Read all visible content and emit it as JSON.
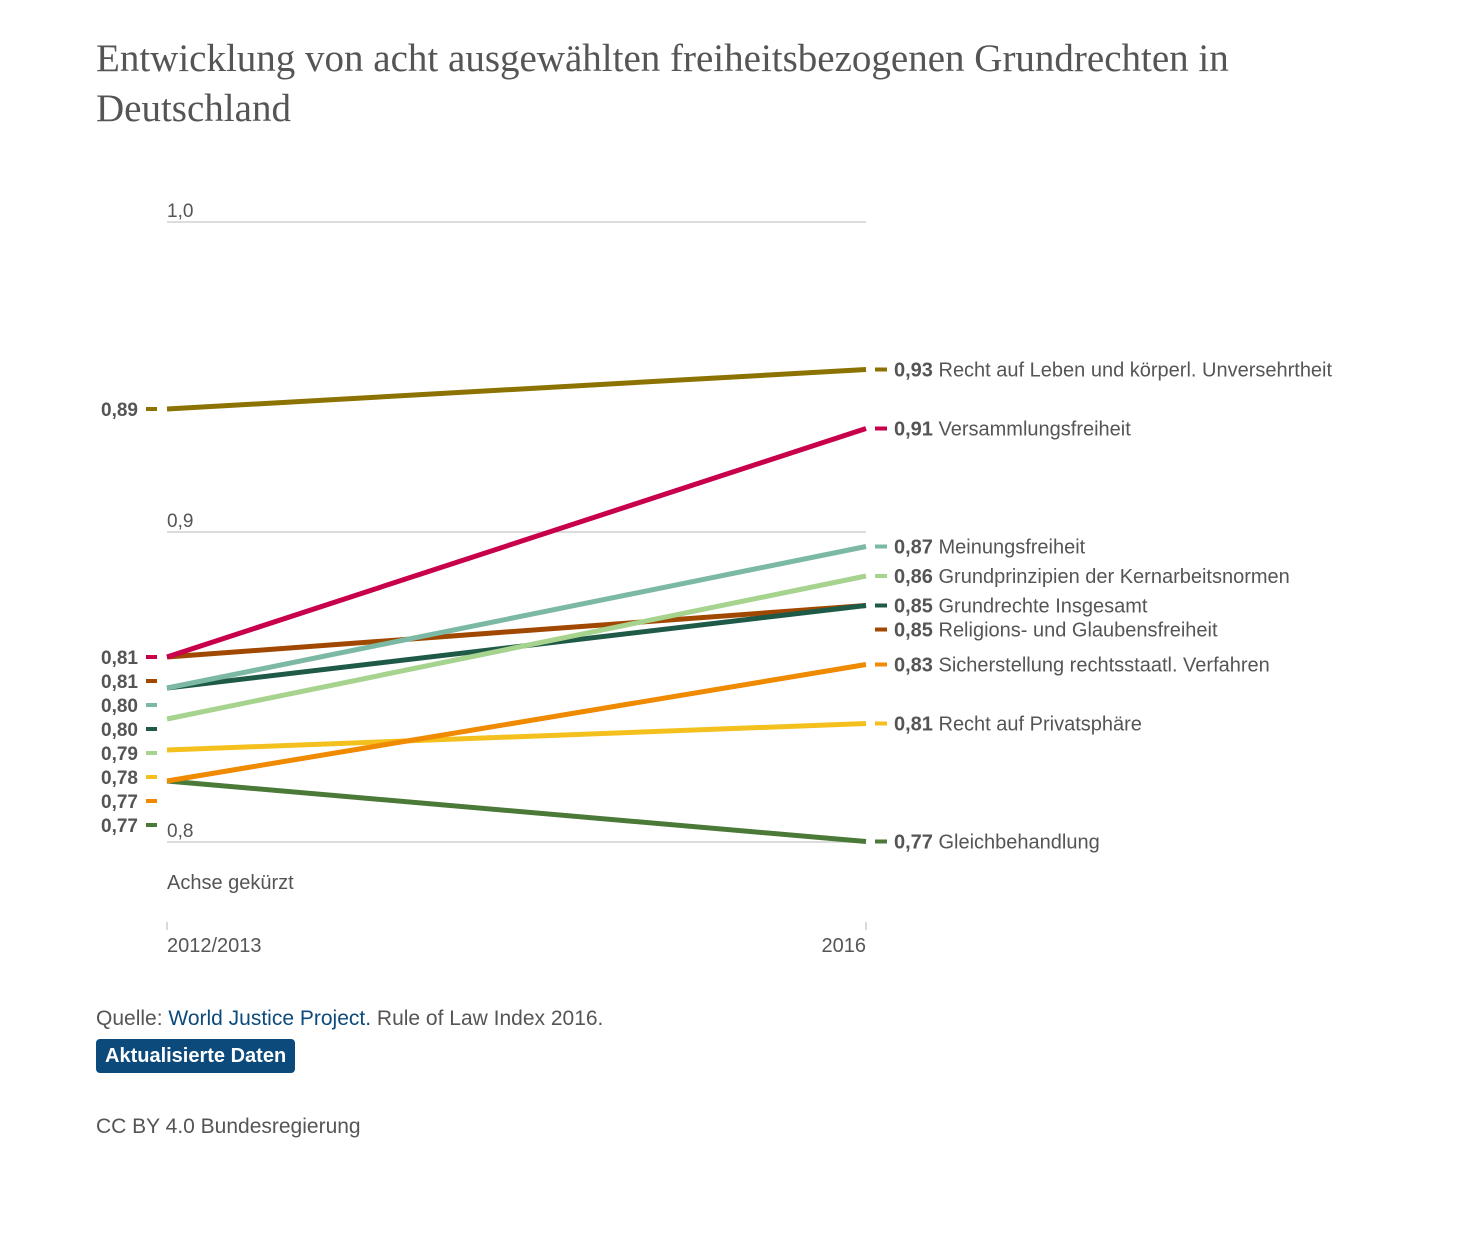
{
  "title": "Entwicklung von acht ausgewählten freiheitsbezogenen Grundrechten in Deutschland",
  "source": {
    "prefix": "Quelle: ",
    "link_text": "World Justice Project.",
    "suffix": " Rule of Law Index 2016."
  },
  "update_button": "Aktualisierte Daten",
  "license": "CC BY 4.0 Bundesregierung",
  "chart_data": {
    "type": "line",
    "title": "Entwicklung von acht ausgewählten freiheitsbezogenen Grundrechten in Deutschland",
    "x": [
      "2012/2013",
      "2016"
    ],
    "ylim": [
      0.76,
      0.98
    ],
    "y_ticks": [
      "1,0",
      "0,9",
      "0,8"
    ],
    "axis_note": "Achse gekürzt",
    "grid": true,
    "legend": "right",
    "series": [
      {
        "name": "Recht auf Leben und körperl. Unversehrtheit",
        "values": [
          0.89,
          0.93
        ],
        "labels": [
          "0,89",
          "0,93"
        ],
        "color": "#8c7200"
      },
      {
        "name": "Versammlungsfreiheit",
        "values": [
          0.81,
          0.91
        ],
        "labels": [
          "0,81",
          "0,91"
        ],
        "color": "#c8004b"
      },
      {
        "name": "Meinungsfreiheit",
        "values": [
          0.8,
          0.87
        ],
        "labels": [
          "0,80",
          "0,87"
        ],
        "color": "#7cb9a5"
      },
      {
        "name": "Grundprinzipien der Kernarbeitsnormen",
        "values": [
          0.79,
          0.86
        ],
        "labels": [
          "0,79",
          "0,86"
        ],
        "color": "#a6d38d"
      },
      {
        "name": "Grundrechte Insgesamt",
        "values": [
          0.8,
          0.85
        ],
        "labels": [
          "0,80",
          "0,85"
        ],
        "color": "#1f5a48"
      },
      {
        "name": "Religions- und Glaubensfreiheit",
        "values": [
          0.81,
          0.85
        ],
        "labels": [
          "0,81",
          "0,85"
        ],
        "color": "#a14800"
      },
      {
        "name": "Sicherstellung rechtsstaatl. Verfahren",
        "values": [
          0.77,
          0.83
        ],
        "labels": [
          "0,77",
          "0,83"
        ],
        "color": "#f08a00"
      },
      {
        "name": "Recht auf Privatsphäre",
        "values": [
          0.78,
          0.81
        ],
        "labels": [
          "0,78",
          "0,81"
        ],
        "color": "#f3c01e"
      },
      {
        "name": "Gleichbehandlung",
        "values": [
          0.77,
          0.77
        ],
        "labels": [
          "0,77",
          "0,77"
        ],
        "color": "#4b7a38"
      }
    ]
  }
}
